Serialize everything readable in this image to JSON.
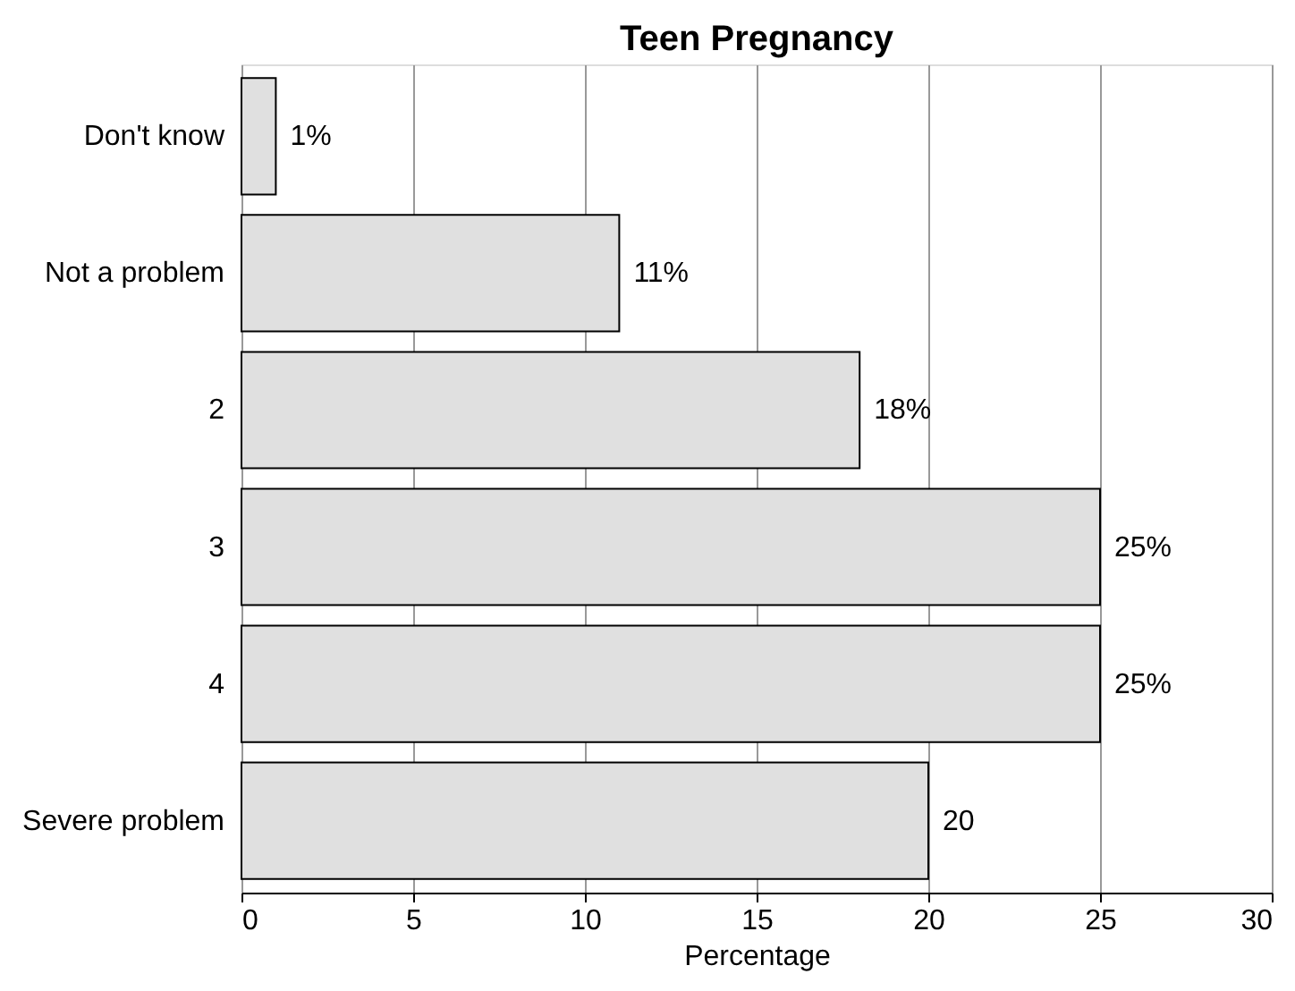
{
  "chart_data": {
    "type": "bar",
    "title": "Teen Pregnancy",
    "orientation": "horizontal",
    "categories": [
      "Don't know",
      "Not a problem",
      "2",
      "3",
      "4",
      "Severe problem"
    ],
    "values": [
      1,
      11,
      18,
      25,
      25,
      20
    ],
    "value_labels": [
      "1%",
      "11%",
      "18%",
      "25%",
      "25%",
      "20"
    ],
    "color": "#e0e0e0",
    "xlabel": "Percentage",
    "xlim": [
      0,
      30
    ],
    "xticks": [
      0,
      5,
      10,
      15,
      20,
      25,
      30
    ],
    "grid": "x"
  }
}
